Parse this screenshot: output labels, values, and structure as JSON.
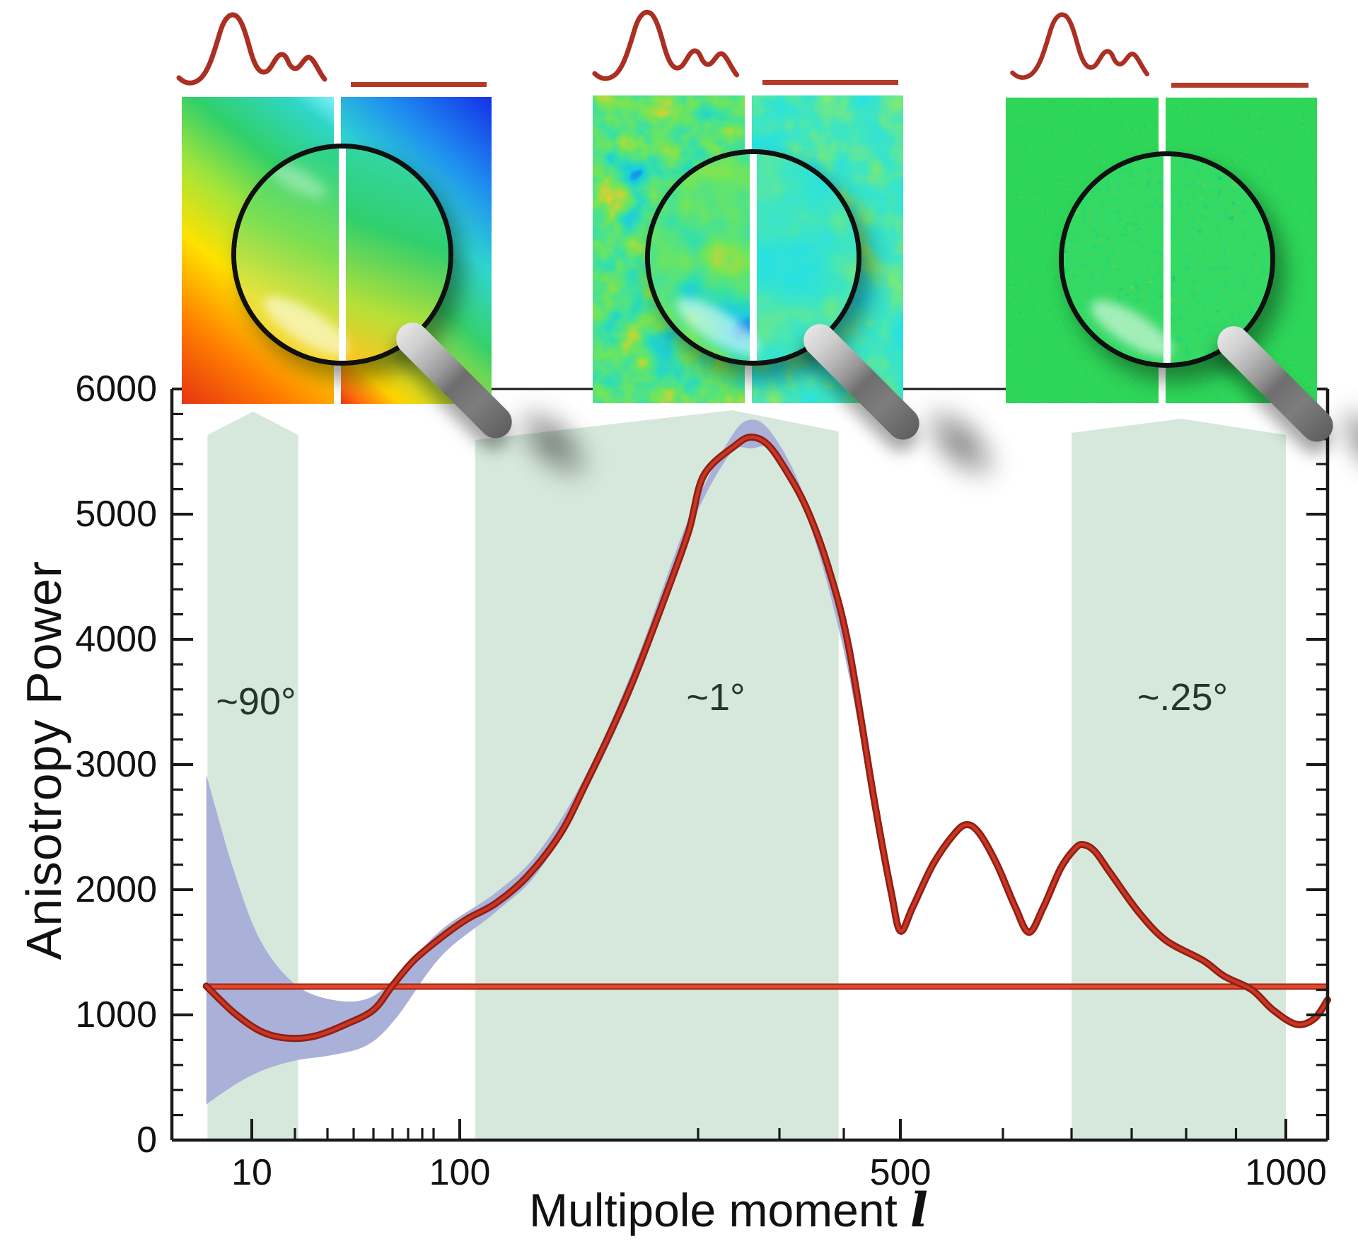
{
  "figure": {
    "y_axis": {
      "title": "Anisotropy Power",
      "tick_labels": [
        "6000",
        "5000",
        "4000",
        "3000",
        "2000",
        "1000",
        "0"
      ],
      "tick_values": [
        6000,
        5000,
        4000,
        3000,
        2000,
        1000,
        0
      ]
    },
    "x_axis": {
      "title": "Multipole moment",
      "title_symbol": "l",
      "tick_labels": [
        "10",
        "100",
        "500",
        "1000"
      ],
      "tick_values": [
        10,
        100,
        500,
        1000
      ]
    },
    "scale_labels": [
      {
        "text": "~90°"
      },
      {
        "text": "~1°"
      },
      {
        "text": "~.25°"
      }
    ]
  },
  "chart_data": {
    "type": "line",
    "title": "",
    "xlabel": "Multipole moment l",
    "ylabel": "Anisotropy Power",
    "x_scale": "nonlinear (log-like, compressed toward high multipoles)",
    "xlim": [
      2,
      1060
    ],
    "ylim": [
      0,
      6000
    ],
    "x_ticks_major": [
      10,
      100,
      500,
      1000
    ],
    "x_ticks_minor": [
      20,
      30,
      40,
      50,
      60,
      70,
      80,
      90,
      200,
      300,
      400,
      600,
      700,
      800,
      900,
      950
    ],
    "y_ticks_major": [
      0,
      1000,
      2000,
      3000,
      4000,
      5000,
      6000
    ],
    "y_minor_step": 200,
    "grid": false,
    "legend": false,
    "series": [
      {
        "name": "acoustic-peaks-model-curve",
        "color": "#cb3524",
        "points": [
          [
            4.5,
            1230
          ],
          [
            7.7,
            1020
          ],
          [
            12,
            870
          ],
          [
            18,
            815
          ],
          [
            26,
            830
          ],
          [
            37,
            925
          ],
          [
            50,
            1040
          ],
          [
            60,
            1235
          ],
          [
            74,
            1435
          ],
          [
            93,
            1620
          ],
          [
            103,
            1765
          ],
          [
            115,
            1890
          ],
          [
            128,
            2100
          ],
          [
            142,
            2440
          ],
          [
            153,
            2850
          ],
          [
            165,
            3330
          ],
          [
            174,
            3730
          ],
          [
            186,
            4330
          ],
          [
            196,
            4860
          ],
          [
            207,
            5310
          ],
          [
            246,
            5550
          ],
          [
            265,
            5615
          ],
          [
            285,
            5560
          ],
          [
            309,
            5360
          ],
          [
            342,
            5050
          ],
          [
            375,
            4590
          ],
          [
            408,
            3955
          ],
          [
            453,
            2735
          ],
          [
            484,
            1975
          ],
          [
            500,
            1670
          ],
          [
            512,
            1860
          ],
          [
            532,
            2205
          ],
          [
            553,
            2450
          ],
          [
            565,
            2520
          ],
          [
            577,
            2450
          ],
          [
            594,
            2205
          ],
          [
            618,
            1860
          ],
          [
            638,
            1660
          ],
          [
            659,
            1860
          ],
          [
            684,
            2170
          ],
          [
            706,
            2330
          ],
          [
            720,
            2360
          ],
          [
            739,
            2305
          ],
          [
            765,
            2130
          ],
          [
            813,
            1820
          ],
          [
            863,
            1595
          ],
          [
            917,
            1435
          ],
          [
            938,
            1310
          ],
          [
            966,
            1200
          ],
          [
            987,
            1040
          ],
          [
            1015,
            925
          ],
          [
            1041,
            970
          ],
          [
            1060,
            1120
          ]
        ]
      },
      {
        "name": "scale-invariant-flat-spectrum-line",
        "color": "#dc4128",
        "points": [
          [
            4.4,
            1226
          ],
          [
            1060,
            1226
          ]
        ]
      },
      {
        "name": "cosmic-variance-band",
        "color": "#a9b1d8",
        "band": [
          [
            4.5,
            2920,
            285
          ],
          [
            7.7,
            2160,
            435
          ],
          [
            12,
            1595,
            550
          ],
          [
            20,
            1245,
            635
          ],
          [
            32,
            1120,
            680
          ],
          [
            47,
            1130,
            760
          ],
          [
            62,
            1300,
            970
          ],
          [
            93,
            1680,
            1470
          ],
          [
            115,
            1975,
            1820
          ],
          [
            133,
            2300,
            2145
          ],
          [
            153,
            2920,
            2790
          ],
          [
            174,
            3825,
            3655
          ],
          [
            195,
            4915,
            4815
          ],
          [
            237,
            5580,
            5460
          ],
          [
            265,
            5755,
            5525
          ],
          [
            294,
            5615,
            5490
          ],
          [
            342,
            5095,
            4995
          ],
          [
            397,
            4080,
            3975
          ],
          [
            453,
            2780,
            2655
          ],
          [
            500,
            1715,
            1625
          ]
        ]
      }
    ],
    "angular_scale_bands": [
      {
        "label": "~90°",
        "l_range": [
          4.6,
          21
        ]
      },
      {
        "label": "~1°",
        "l_range": [
          106.5,
          392
        ]
      },
      {
        "label": "~.25°",
        "l_range": [
          700,
          1000
        ]
      }
    ]
  },
  "insets": [
    {
      "name": "map-largest-scales",
      "left_half": "smooth rainbow gradient sky map (simulation)",
      "right_half": "smooth rainbow gradient sky map (data)",
      "magnifier": "shows uniform green/yellow detail"
    },
    {
      "name": "map-degree-scales",
      "left_half": "mottled hot and cold spot sky map (simulation)",
      "right_half": "mottled cyan sky map with warm blobs (data)",
      "magnifier": "shows enlarged temperature blobs"
    },
    {
      "name": "map-smallest-scales",
      "left_half": "fine green speckle sky map (simulation)",
      "right_half": "fine green speckle sky map (data)",
      "magnifier": "shows enlarged speckles"
    }
  ],
  "colors": {
    "curve": "#cb3524",
    "curve_edge": "#8e2015",
    "flat_line": "#e0492e",
    "flat_line_edge": "#a82a1a",
    "variance_band": "#a9b1d8",
    "scale_band": "#d5e8db",
    "axis": "#1a1a1a",
    "text": "#111111",
    "thumb_curve": "#ab2f22"
  }
}
